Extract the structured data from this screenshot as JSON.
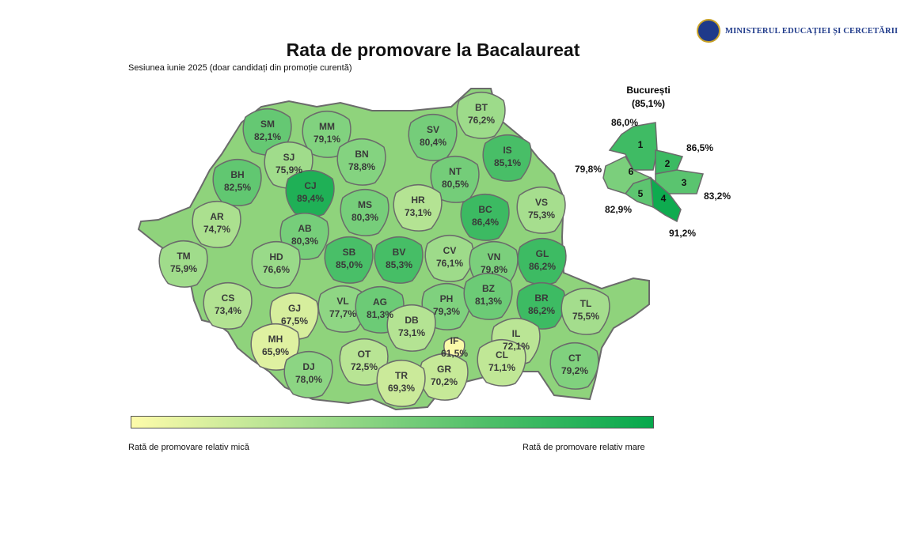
{
  "header": {
    "ministry": "MINISTERUL EDUCAȚIEI ȘI CERCETĂRII",
    "title": "Rata de promovare la Bacalaureat",
    "subtitle": "Sesiunea iunie 2025 (doar candidați din promoție curentă)"
  },
  "legend": {
    "low_label": "Rată de promovare relativ mică",
    "high_label": "Rată de promovare relativ mare"
  },
  "counties": [
    {
      "code": "SM",
      "value": "82,1%"
    },
    {
      "code": "MM",
      "value": "79,1%"
    },
    {
      "code": "SV",
      "value": "80,4%"
    },
    {
      "code": "BT",
      "value": "76,2%"
    },
    {
      "code": "SJ",
      "value": "75,9%"
    },
    {
      "code": "BN",
      "value": "78,8%"
    },
    {
      "code": "IS",
      "value": "85,1%"
    },
    {
      "code": "BH",
      "value": "82,5%"
    },
    {
      "code": "CJ",
      "value": "89,4%"
    },
    {
      "code": "NT",
      "value": "80,5%"
    },
    {
      "code": "MS",
      "value": "80,3%"
    },
    {
      "code": "HR",
      "value": "73,1%"
    },
    {
      "code": "VS",
      "value": "75,3%"
    },
    {
      "code": "AR",
      "value": "74,7%"
    },
    {
      "code": "BC",
      "value": "86,4%"
    },
    {
      "code": "AB",
      "value": "80,3%"
    },
    {
      "code": "TM",
      "value": "75,9%"
    },
    {
      "code": "HD",
      "value": "76,6%"
    },
    {
      "code": "SB",
      "value": "85,0%"
    },
    {
      "code": "BV",
      "value": "85,3%"
    },
    {
      "code": "CV",
      "value": "76,1%"
    },
    {
      "code": "VN",
      "value": "79,8%"
    },
    {
      "code": "GL",
      "value": "86,2%"
    },
    {
      "code": "CS",
      "value": "73,4%"
    },
    {
      "code": "GJ",
      "value": "67,5%"
    },
    {
      "code": "VL",
      "value": "77,7%"
    },
    {
      "code": "AG",
      "value": "81,3%"
    },
    {
      "code": "PH",
      "value": "79,3%"
    },
    {
      "code": "BZ",
      "value": "81,3%"
    },
    {
      "code": "BR",
      "value": "86,2%"
    },
    {
      "code": "TL",
      "value": "75,5%"
    },
    {
      "code": "MH",
      "value": "65,9%"
    },
    {
      "code": "DB",
      "value": "73,1%"
    },
    {
      "code": "IL",
      "value": "72,1%"
    },
    {
      "code": "IF",
      "value": "61,5%"
    },
    {
      "code": "DJ",
      "value": "78,0%"
    },
    {
      "code": "OT",
      "value": "72,5%"
    },
    {
      "code": "GR",
      "value": "70,2%"
    },
    {
      "code": "CL",
      "value": "71,1%"
    },
    {
      "code": "CT",
      "value": "79,2%"
    },
    {
      "code": "TR",
      "value": "69,3%"
    }
  ],
  "bucharest": {
    "name": "București",
    "total": "(85,1%)",
    "sectors": [
      {
        "label": "1",
        "value": "86,0%"
      },
      {
        "label": "2",
        "value": "86,5%"
      },
      {
        "label": "3",
        "value": "83,2%"
      },
      {
        "label": "4",
        "value": "91,2%"
      },
      {
        "label": "5",
        "value": "82,9%"
      },
      {
        "label": "6",
        "value": "79,8%"
      }
    ]
  },
  "colors": {
    "low": "#fdfbaa",
    "mid": "#a9df8f",
    "high": "#06a84c",
    "border": "#6b6b6b"
  }
}
